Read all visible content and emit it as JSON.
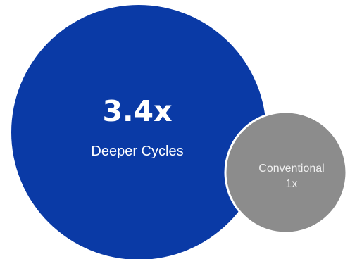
{
  "chart_data": {
    "type": "bubble",
    "items": [
      {
        "name": "Deeper Cycles",
        "value": 3.4,
        "value_label": "3.4x",
        "color": "#0a3aa6"
      },
      {
        "name": "Conventional",
        "value": 1,
        "value_label": "1x",
        "color": "#8c8c8c"
      }
    ]
  }
}
